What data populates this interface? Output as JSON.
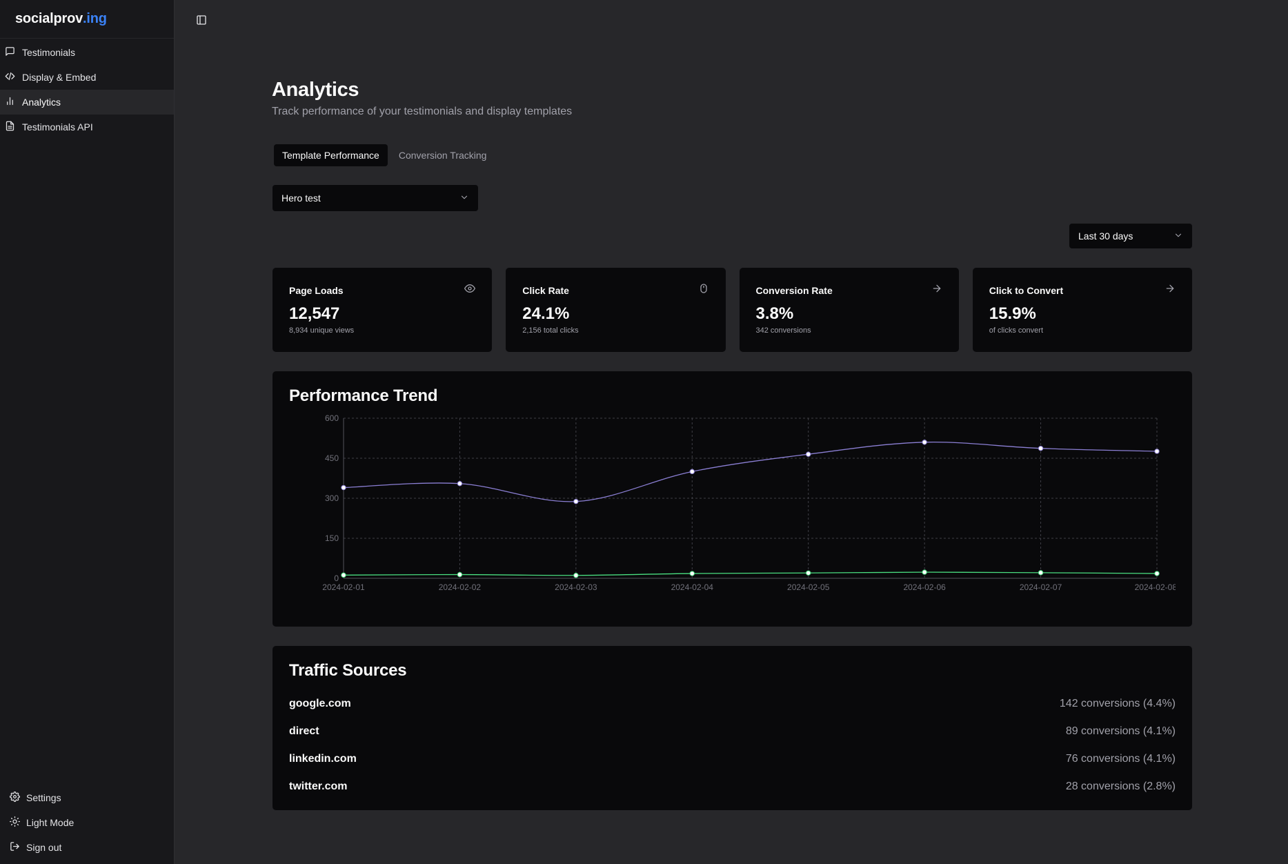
{
  "brand": {
    "name": "socialprov",
    "accent": ".ing",
    "accent_color": "#3b82f6"
  },
  "sidebar": {
    "items": [
      {
        "label": "Testimonials",
        "icon": "message-square-icon"
      },
      {
        "label": "Display & Embed",
        "icon": "code-icon"
      },
      {
        "label": "Analytics",
        "icon": "bar-chart-icon",
        "active": true
      },
      {
        "label": "Testimonials API",
        "icon": "file-text-icon"
      }
    ],
    "footer": [
      {
        "label": "Settings",
        "icon": "gear-icon"
      },
      {
        "label": "Light Mode",
        "icon": "sun-icon"
      },
      {
        "label": "Sign out",
        "icon": "log-out-icon"
      }
    ]
  },
  "page": {
    "title": "Analytics",
    "subtitle": "Track performance of your testimonials and display templates"
  },
  "tabs": [
    {
      "label": "Template Performance",
      "active": true
    },
    {
      "label": "Conversion Tracking",
      "active": false
    }
  ],
  "template_select": {
    "value": "Hero test"
  },
  "range_select": {
    "value": "Last 30 days"
  },
  "cards": [
    {
      "title": "Page Loads",
      "value": "12,547",
      "sub": "8,934 unique views",
      "icon": "eye-icon"
    },
    {
      "title": "Click Rate",
      "value": "24.1%",
      "sub": "2,156 total clicks",
      "icon": "mouse-icon"
    },
    {
      "title": "Conversion Rate",
      "value": "3.8%",
      "sub": "342 conversions",
      "icon": "arrow-right-icon"
    },
    {
      "title": "Click to Convert",
      "value": "15.9%",
      "sub": "of clicks convert",
      "icon": "arrow-right-icon"
    }
  ],
  "trend": {
    "title": "Performance Trend"
  },
  "chart_data": {
    "type": "line",
    "title": "Performance Trend",
    "x": [
      "2024-02-01",
      "2024-02-02",
      "2024-02-03",
      "2024-02-04",
      "2024-02-05",
      "2024-02-06",
      "2024-02-07",
      "2024-02-08"
    ],
    "series": [
      {
        "values": [
          340,
          355,
          288,
          400,
          465,
          510,
          487,
          476
        ],
        "color": "#8b7fd4"
      },
      {
        "values": [
          12,
          14,
          11,
          18,
          20,
          23,
          21,
          18
        ],
        "color": "#4ade80"
      }
    ],
    "ylim": [
      0,
      600
    ],
    "yticks": [
      0,
      150,
      300,
      450,
      600
    ],
    "grid": true,
    "xlabel": "",
    "ylabel": ""
  },
  "traffic": {
    "title": "Traffic Sources",
    "rows": [
      {
        "source": "google.com",
        "value": "142 conversions (4.4%)"
      },
      {
        "source": "direct",
        "value": "89 conversions (4.1%)"
      },
      {
        "source": "linkedin.com",
        "value": "76 conversions (4.1%)"
      },
      {
        "source": "twitter.com",
        "value": "28 conversions (2.8%)"
      }
    ]
  }
}
